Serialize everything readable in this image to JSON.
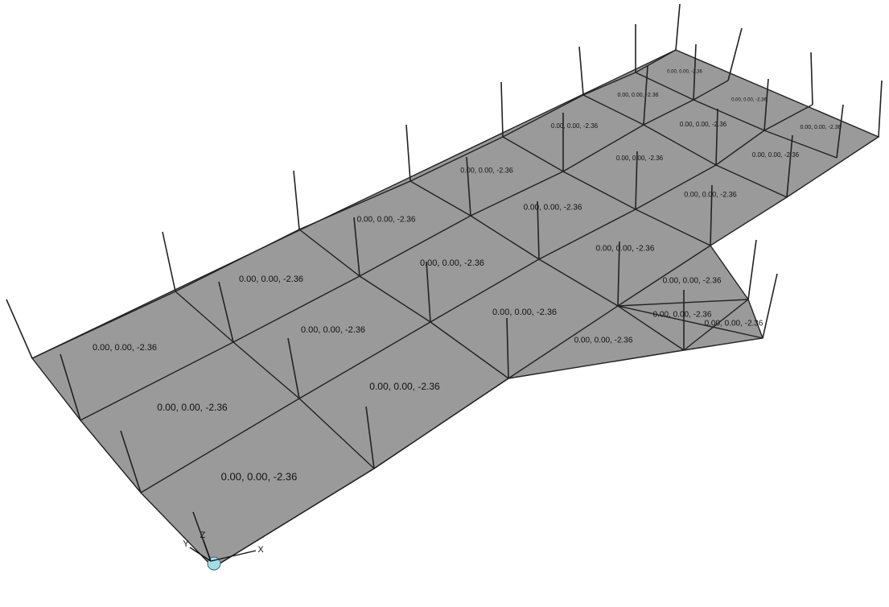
{
  "labels": [
    "0.00, 0.00, -2.36",
    "0.00, 0.00, -2.36",
    "0.00, 0.00, -2.36",
    "0.00, 0.00, -2.36",
    "0.00, 0.00, -2.36",
    "0.00, 0.00, -2.36",
    "0.00, 0.00, -2.36",
    "0.00, 0.00, -2.36",
    "0.00, 0.00, -2.36",
    "0.00, 0.00, -2.36",
    "0.00, 0.00, -2.36",
    "0.00, 0.00, -2.36",
    "0.00, 0.00, -2.36",
    "0.00, 0.00, -2.36",
    "0.00, 0.00, -2.36",
    "0.00, 0.00, -2.36",
    "0.00, 0.00, -2.36",
    "0.00, 0.00, -2.36",
    "0.00, 0.00, -2.36",
    "0.00, 0.00, -2.36",
    "0.00, 0.00, -2.36",
    "0.00, 0.00, -2.36",
    "0.00, 0.00, -2.36",
    "0.00, 0.00, -2.36",
    "0.00, 0.00, -2.36"
  ],
  "axes": {
    "x": "X",
    "y": "Y",
    "z": "Z"
  }
}
